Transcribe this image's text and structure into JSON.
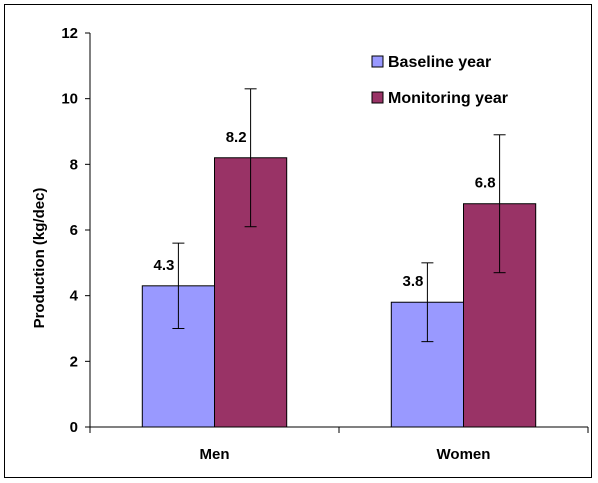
{
  "chart_data": {
    "type": "bar",
    "title": "",
    "xlabel": "",
    "ylabel": "Production (kg/dec)",
    "ylim": [
      0,
      12
    ],
    "yticks": [
      0,
      2,
      4,
      6,
      8,
      10,
      12
    ],
    "categories": [
      "Men",
      "Women"
    ],
    "series": [
      {
        "name": "Baseline year",
        "color": "#9999FF",
        "values": [
          4.3,
          3.8
        ],
        "error_low": [
          3.0,
          2.6
        ],
        "error_high": [
          5.6,
          5.0
        ],
        "data_labels": [
          "4.3",
          "3.8"
        ]
      },
      {
        "name": "Monitoring year",
        "color": "#993366",
        "values": [
          8.2,
          6.8
        ],
        "error_low": [
          6.1,
          4.7
        ],
        "error_high": [
          10.3,
          8.9
        ],
        "data_labels": [
          "8.2",
          "6.8"
        ]
      }
    ],
    "grid": false,
    "legend_position": "top-right"
  }
}
